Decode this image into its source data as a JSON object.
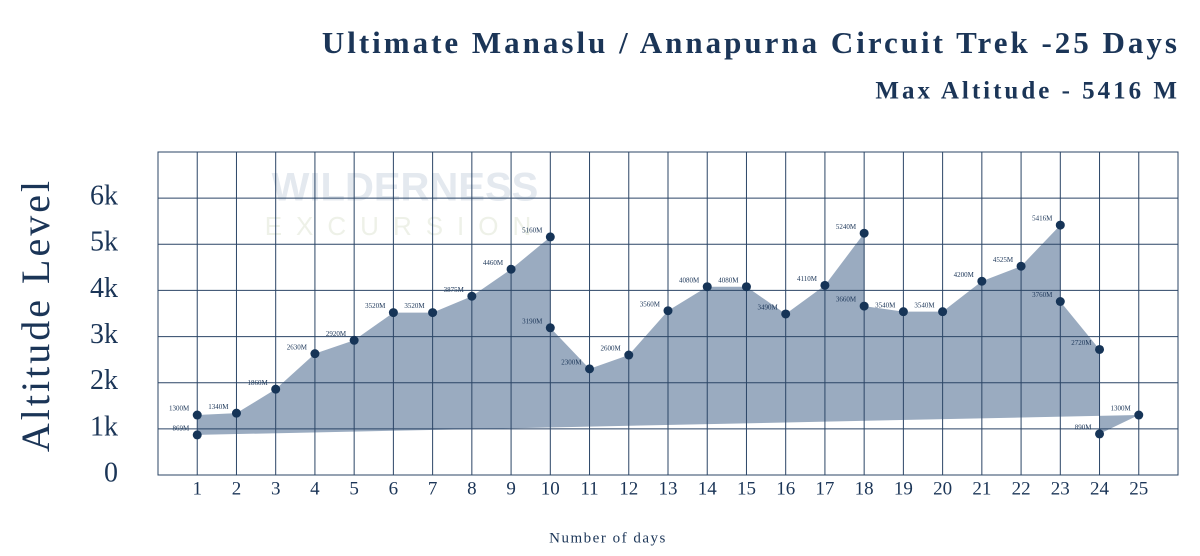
{
  "chart_data": {
    "type": "area",
    "title": "Ultimate Manaslu / Annapurna Circuit Trek -25 Days",
    "subtitle": "Max Altitude - 5416 M",
    "y_label": "Altitude Level",
    "x_label": "Number of days",
    "watermark": [
      "WILDERNESS",
      "EXCURSION"
    ],
    "xlim": [
      0,
      26
    ],
    "xticks": [
      1,
      2,
      3,
      4,
      5,
      6,
      7,
      8,
      9,
      10,
      11,
      12,
      13,
      14,
      15,
      16,
      17,
      18,
      19,
      20,
      21,
      22,
      23,
      24,
      25
    ],
    "ylim": [
      0,
      7000
    ],
    "yticks": [
      0,
      {
        "value": 1000,
        "label": "1k"
      },
      {
        "value": 2000,
        "label": "2k"
      },
      {
        "value": 3000,
        "label": "3k"
      },
      {
        "value": 4000,
        "label": "4k"
      },
      {
        "value": 5000,
        "label": "5k"
      },
      {
        "value": 6000,
        "label": "6k"
      }
    ],
    "grid": true,
    "series": [
      {
        "name": "Altitude",
        "color": "#9aabc0",
        "point_color": "#163457",
        "x": [
          1,
          1,
          2,
          3,
          4,
          5,
          6,
          7,
          8,
          9,
          10,
          10,
          11,
          12,
          13,
          14,
          15,
          16,
          17,
          18,
          18,
          19,
          20,
          21,
          22,
          23,
          23,
          24,
          24,
          25
        ],
        "values": [
          869,
          1300,
          1340,
          1860,
          2630,
          2920,
          3520,
          3520,
          3875,
          4460,
          5160,
          3190,
          2300,
          2600,
          3560,
          4080,
          4080,
          3490,
          4110,
          5240,
          3660,
          3540,
          3540,
          4200,
          4525,
          5416,
          3760,
          2720,
          890,
          1300
        ],
        "value_labels": [
          "869M",
          "1300M",
          "1340M",
          "1860M",
          "2630M",
          "2920M",
          "3520M",
          "3520M",
          "3875M",
          "4460M",
          "5160M",
          "3190M",
          "2300M",
          "2600M",
          "3560M",
          "4080M",
          "4080M",
          "3490M",
          "4110M",
          "5240M",
          "3660M",
          "3540M",
          "3540M",
          "4200M",
          "4525M",
          "5416M",
          "3760M",
          "2720M",
          "890M",
          "1300M"
        ]
      }
    ]
  }
}
